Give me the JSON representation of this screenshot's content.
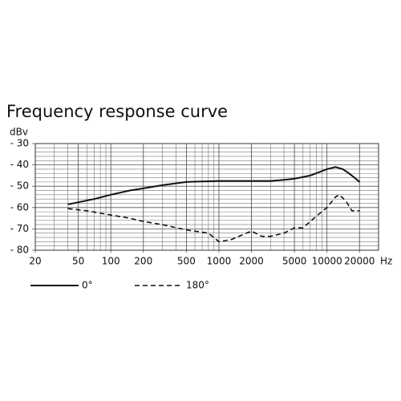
{
  "chart_data": {
    "type": "line",
    "title": "Frequency response curve",
    "y_label": "dBv",
    "x_label": "Hz",
    "x_scale": "log",
    "grid": true,
    "xlim": [
      20,
      30000
    ],
    "xticks": [
      20,
      50,
      100,
      200,
      500,
      1000,
      2000,
      5000,
      10000,
      20000
    ],
    "ylim": [
      -80,
      -30
    ],
    "yticks": [
      {
        "value": -80,
        "label": "- 80"
      },
      {
        "value": -70,
        "label": "- 70"
      },
      {
        "value": -60,
        "label": "- 60"
      },
      {
        "value": -50,
        "label": "- 50"
      },
      {
        "value": -40,
        "label": "- 40"
      },
      {
        "value": -30,
        "label": "- 30"
      }
    ],
    "series": [
      {
        "name": "0°",
        "color": "#111111",
        "style": "solid",
        "x": [
          40,
          50,
          70,
          100,
          150,
          200,
          300,
          500,
          1000,
          2000,
          3000,
          4000,
          5000,
          7000,
          10000,
          12000,
          14000,
          16000,
          18000,
          20000
        ],
        "values": [
          -58.5,
          -57.5,
          -56,
          -54,
          -52,
          -51,
          -49.5,
          -48,
          -47.5,
          -47.5,
          -47.5,
          -47,
          -46.5,
          -45,
          -42,
          -41,
          -42,
          -44,
          -46,
          -48
        ]
      },
      {
        "name": "180°",
        "color": "#111111",
        "style": "dashed",
        "x": [
          40,
          60,
          100,
          150,
          200,
          300,
          500,
          800,
          1000,
          1300,
          2000,
          2500,
          3000,
          4000,
          5000,
          6000,
          8000,
          10000,
          12000,
          13000,
          15000,
          17000,
          20000
        ],
        "values": [
          -60.5,
          -61.5,
          -63.5,
          -65,
          -66.5,
          -68,
          -70.5,
          -72,
          -76,
          -75,
          -71,
          -73.5,
          -73.5,
          -72,
          -69.5,
          -69.5,
          -64,
          -60,
          -55,
          -54,
          -57,
          -61.5,
          -61.5
        ]
      }
    ]
  }
}
